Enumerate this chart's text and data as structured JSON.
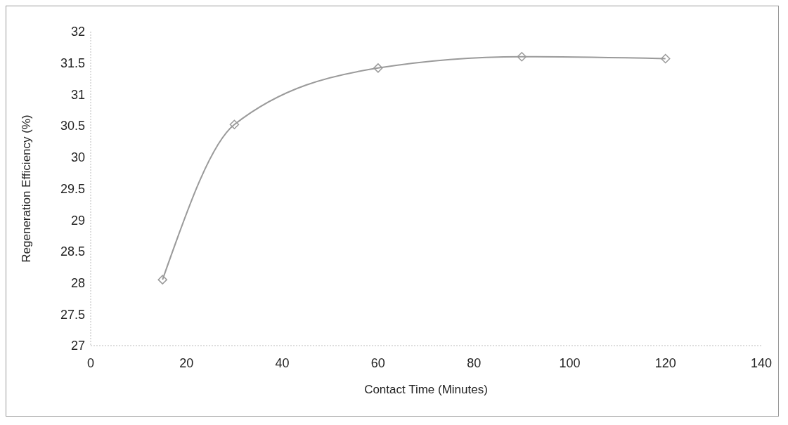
{
  "chart_data": {
    "type": "line",
    "xlabel": "Contact Time (Minutes)",
    "ylabel": "Regeneration Efficiency (%)",
    "x": [
      15,
      30,
      60,
      90,
      120
    ],
    "series": [
      {
        "color": "#9a9a9a",
        "values": [
          28.05,
          30.52,
          31.42,
          31.6,
          31.57
        ]
      }
    ],
    "xlim": [
      0,
      140
    ],
    "xticks": [
      0,
      20,
      40,
      60,
      80,
      100,
      120,
      140
    ],
    "ylim": [
      27,
      32
    ],
    "yticks": [
      27,
      27.5,
      28,
      28.5,
      29,
      29.5,
      30,
      30.5,
      31,
      31.5,
      32
    ],
    "grid": false,
    "marker": "diamond",
    "line_style": "solid"
  }
}
